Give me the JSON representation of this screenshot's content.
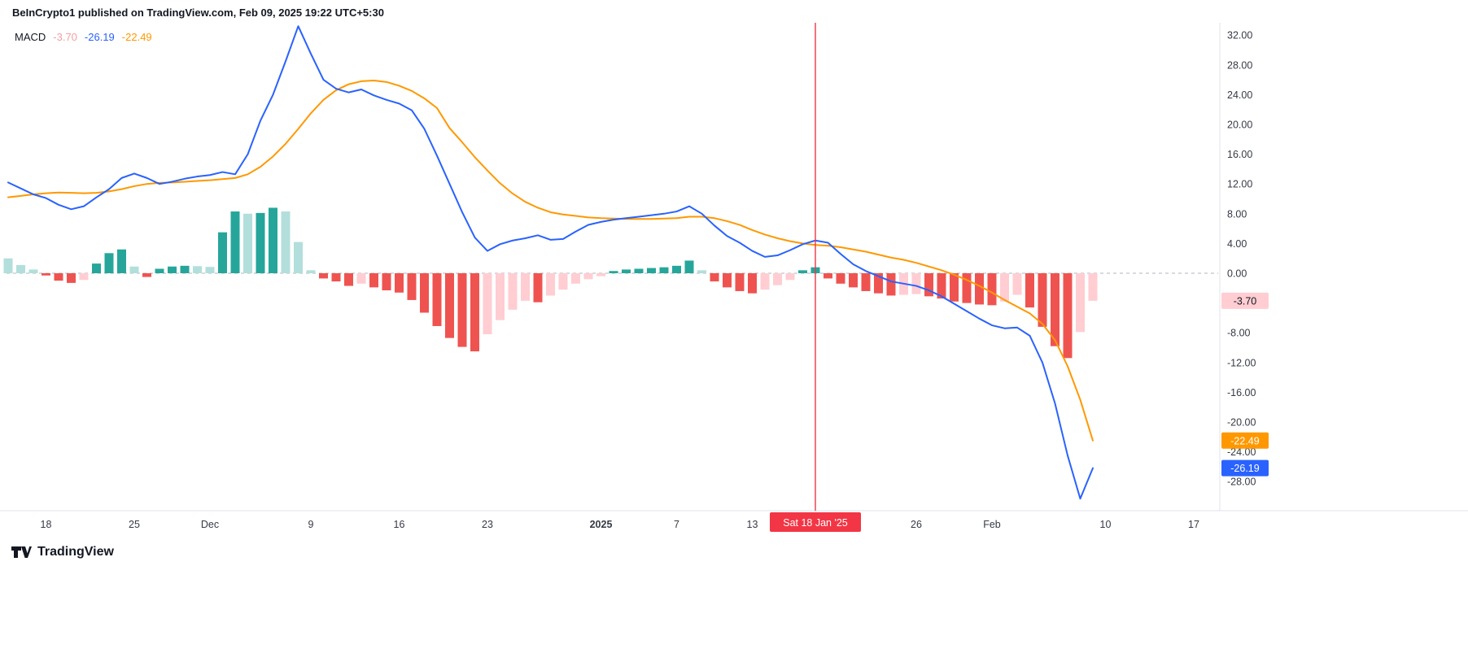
{
  "header": {
    "attribution": "BeInCrypto1 published on TradingView.com, Feb 09, 2025 19:22 UTC+5:30"
  },
  "legend": {
    "indicator": "MACD",
    "values": [
      {
        "name": "histogram",
        "text": "-3.70",
        "color": "#F59EA3"
      },
      {
        "name": "macd",
        "text": "-26.19",
        "color": "#2962FF"
      },
      {
        "name": "signal",
        "text": "-22.49",
        "color": "#FF9800"
      }
    ]
  },
  "footer": {
    "brand": "TradingView"
  },
  "colors": {
    "axis_text": "#363A45",
    "axis_border": "#E0E3EB",
    "zero_line": "#B2B5BE",
    "event_marker": "#F23645",
    "background": "#FFFFFF"
  },
  "chart_data": {
    "type": "bar",
    "subtype": "macd-indicator",
    "title": "MACD",
    "x_start_date": "2024-11-15",
    "x_interval": "1 day",
    "points": 87,
    "ylim": [
      -28,
      32
    ],
    "y_tick_step": 4,
    "y_skip_labels": [
      -4
    ],
    "grid": "off",
    "legend_position": "top-left",
    "x_ticks": [
      {
        "day": 3,
        "label": "18"
      },
      {
        "day": 10,
        "label": "25"
      },
      {
        "day": 16,
        "label": "Dec"
      },
      {
        "day": 24,
        "label": "9"
      },
      {
        "day": 31,
        "label": "16"
      },
      {
        "day": 38,
        "label": "23"
      },
      {
        "day": 47,
        "label": "2025",
        "bold": true
      },
      {
        "day": 53,
        "label": "7"
      },
      {
        "day": 59,
        "label": "13"
      },
      {
        "day": 72,
        "label": "26"
      },
      {
        "day": 78,
        "label": "Feb"
      },
      {
        "day": 87,
        "label": "10"
      },
      {
        "day": 94,
        "label": "17"
      }
    ],
    "highlight_marker": {
      "day": 64,
      "label": "Sat 18 Jan '25",
      "color": "#F23645"
    },
    "series": {
      "macd": {
        "label": "MACD line",
        "color": "#2962FF",
        "last_value": -26.19,
        "values": [
          12.2,
          11.4,
          10.6,
          10.1,
          9.2,
          8.6,
          9.0,
          10.2,
          11.3,
          12.8,
          13.4,
          12.8,
          12.0,
          12.3,
          12.7,
          13.0,
          13.2,
          13.6,
          13.3,
          16.0,
          20.5,
          24.0,
          28.5,
          33.2,
          29.5,
          26.0,
          24.8,
          24.3,
          24.7,
          23.9,
          23.3,
          22.8,
          21.9,
          19.4,
          15.8,
          12.0,
          8.2,
          4.8,
          3.0,
          3.9,
          4.4,
          4.7,
          5.1,
          4.5,
          4.6,
          5.6,
          6.5,
          6.9,
          7.2,
          7.4,
          7.6,
          7.8,
          8.0,
          8.3,
          9.0,
          8.0,
          6.4,
          5.0,
          4.1,
          3.0,
          2.2,
          2.4,
          3.1,
          3.9,
          4.4,
          4.1,
          2.6,
          1.2,
          0.3,
          -0.4,
          -1.1,
          -1.4,
          -1.7,
          -2.3,
          -3.1,
          -4.1,
          -5.1,
          -6.1,
          -7.0,
          -7.4,
          -7.3,
          -8.4,
          -12.0,
          -17.5,
          -24.5,
          -30.3,
          -26.19
        ]
      },
      "signal": {
        "label": "Signal line",
        "color": "#FF9800",
        "last_value": -22.49,
        "values": [
          10.2,
          10.4,
          10.6,
          10.75,
          10.85,
          10.8,
          10.75,
          10.8,
          11.0,
          11.3,
          11.7,
          12.0,
          12.15,
          12.2,
          12.3,
          12.4,
          12.5,
          12.65,
          12.8,
          13.3,
          14.3,
          15.7,
          17.4,
          19.4,
          21.5,
          23.3,
          24.6,
          25.4,
          25.8,
          25.9,
          25.7,
          25.2,
          24.5,
          23.5,
          22.2,
          19.5,
          17.6,
          15.6,
          13.8,
          12.1,
          10.7,
          9.6,
          8.8,
          8.2,
          7.9,
          7.7,
          7.5,
          7.4,
          7.35,
          7.3,
          7.3,
          7.3,
          7.35,
          7.4,
          7.6,
          7.6,
          7.4,
          7.0,
          6.5,
          5.8,
          5.2,
          4.7,
          4.3,
          4.0,
          3.8,
          3.7,
          3.5,
          3.2,
          2.9,
          2.5,
          2.1,
          1.8,
          1.4,
          0.9,
          0.4,
          -0.2,
          -0.9,
          -1.7,
          -2.6,
          -3.6,
          -4.5,
          -5.4,
          -6.8,
          -9.0,
          -12.5,
          -17.0,
          -22.49
        ]
      },
      "histogram": {
        "label": "Histogram",
        "last_value": -3.7,
        "palette": {
          "up_grow": "#26A69A",
          "up_fall": "#B2DFDB",
          "down_grow": "#EF5350",
          "down_fall": "#FFCDD2"
        },
        "values": [
          2.0,
          1.1,
          0.5,
          -0.3,
          -1.0,
          -1.3,
          -0.9,
          1.3,
          2.7,
          3.2,
          0.9,
          -0.5,
          0.6,
          0.9,
          1.0,
          0.95,
          0.85,
          5.5,
          8.3,
          8.0,
          8.1,
          8.8,
          8.3,
          4.2,
          0.4,
          -0.7,
          -1.1,
          -1.7,
          -1.4,
          -1.9,
          -2.3,
          -2.6,
          -3.6,
          -5.3,
          -7.1,
          -8.7,
          -9.9,
          -10.5,
          -8.2,
          -6.3,
          -4.9,
          -3.7,
          -3.9,
          -3.0,
          -2.2,
          -1.4,
          -0.8,
          -0.4,
          0.3,
          0.5,
          0.6,
          0.7,
          0.8,
          1.0,
          1.7,
          0.4,
          -1.1,
          -1.9,
          -2.4,
          -2.7,
          -2.2,
          -1.6,
          -0.9,
          0.4,
          0.8,
          -0.7,
          -1.4,
          -1.9,
          -2.4,
          -2.7,
          -3.0,
          -2.9,
          -2.8,
          -3.1,
          -3.4,
          -3.8,
          -4.0,
          -4.2,
          -4.3,
          -3.8,
          -2.9,
          -4.6,
          -7.2,
          -9.8,
          -11.4,
          -7.9,
          -3.7
        ]
      }
    },
    "value_badges": [
      {
        "name": "histogram",
        "value": -3.7,
        "label": "-3.70",
        "bg": "#FFCDD2",
        "fg": "#131722"
      },
      {
        "name": "signal",
        "value": -22.49,
        "label": "-22.49",
        "bg": "#FF9800",
        "fg": "#FFFFFF"
      },
      {
        "name": "macd",
        "value": -26.19,
        "label": "-26.19",
        "bg": "#2962FF",
        "fg": "#FFFFFF"
      }
    ]
  }
}
